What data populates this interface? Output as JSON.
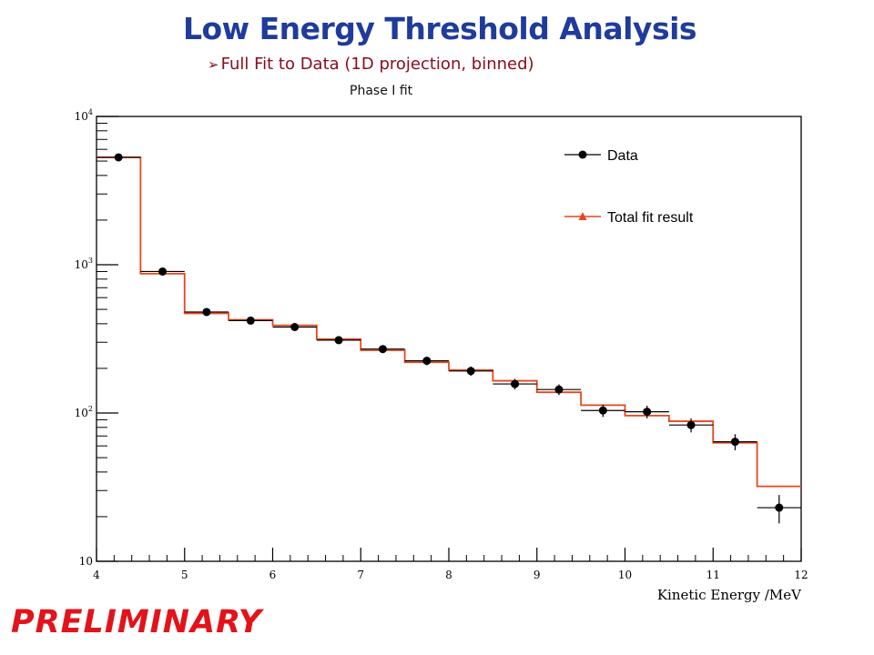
{
  "slide": {
    "title": "Low Energy Threshold Analysis",
    "bullet_marker": "➢",
    "bullet": "Full Fit to Data (1D projection, binned)",
    "subtitle": "Phase I fit",
    "stamp": "PRELIMINARY"
  },
  "colors": {
    "title": "#1f3b9c",
    "bullet": "#8b0a1a",
    "stamp": "#e3131b",
    "data": "#000000",
    "fit": "#e8461c"
  },
  "chart_data": {
    "type": "scatter",
    "title": "",
    "xlabel": "Kinetic Energy /MeV",
    "ylabel": "",
    "xlim": [
      4,
      12
    ],
    "ylim": [
      10,
      10000
    ],
    "y_scale": "log",
    "grid": false,
    "legend_position": "top-right",
    "x_ticks": [
      "4",
      "5",
      "6",
      "7",
      "8",
      "9",
      "10",
      "11",
      "12"
    ],
    "y_ticks": [
      {
        "value": 10,
        "base": "10",
        "exp": ""
      },
      {
        "value": 100,
        "base": "10",
        "exp": "2"
      },
      {
        "value": 1000,
        "base": "10",
        "exp": "3"
      },
      {
        "value": 10000,
        "base": "10",
        "exp": "4"
      }
    ],
    "bin_edges": [
      4.0,
      4.5,
      5.0,
      5.5,
      6.0,
      6.5,
      7.0,
      7.5,
      8.0,
      8.5,
      9.0,
      9.5,
      10.0,
      10.5,
      11.0,
      11.5,
      12.0
    ],
    "series": [
      {
        "name": "Data",
        "style": "points",
        "x": [
          4.25,
          4.75,
          5.25,
          5.75,
          6.25,
          6.75,
          7.25,
          7.75,
          8.25,
          8.75,
          9.25,
          9.75,
          10.25,
          10.75,
          11.25,
          11.75
        ],
        "y": [
          5300,
          900,
          480,
          420,
          380,
          310,
          270,
          225,
          192,
          157,
          144,
          104,
          102,
          83,
          64,
          23
        ],
        "y_err": [
          73,
          30,
          22,
          20,
          19,
          18,
          16,
          15,
          14,
          13,
          12,
          10,
          10,
          9,
          8,
          5
        ]
      },
      {
        "name": "Total fit result",
        "style": "step",
        "y": [
          5300,
          870,
          470,
          425,
          390,
          315,
          265,
          220,
          195,
          165,
          138,
          113,
          96,
          88,
          63,
          32
        ]
      }
    ]
  }
}
